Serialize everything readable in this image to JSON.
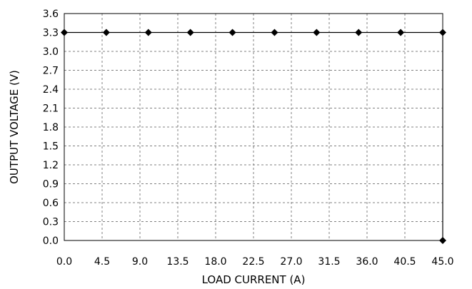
{
  "chart_data": {
    "type": "line",
    "xlabel": "LOAD CURRENT (A)",
    "ylabel": "OUTPUT VOLTAGE (V)",
    "xlim": [
      0,
      45
    ],
    "ylim": [
      0,
      3.6
    ],
    "x_ticks": [
      "0.0",
      "4.5",
      "9.0",
      "13.5",
      "18.0",
      "22.5",
      "27.0",
      "31.5",
      "36.0",
      "40.5",
      "45.0"
    ],
    "y_ticks": [
      "0.0",
      "0.3",
      "0.6",
      "0.9",
      "1.2",
      "1.5",
      "1.8",
      "2.1",
      "2.4",
      "2.7",
      "3.0",
      "3.3",
      "3.6"
    ],
    "grid": true,
    "legend": "none",
    "series": [
      {
        "x": [
          0,
          5,
          10,
          15,
          20,
          25,
          30,
          35,
          40,
          45,
          45
        ],
        "y": [
          3.3,
          3.3,
          3.3,
          3.3,
          3.3,
          3.3,
          3.3,
          3.3,
          3.3,
          3.3,
          0.0
        ],
        "marker": "diamond",
        "color": "#000000"
      }
    ]
  }
}
